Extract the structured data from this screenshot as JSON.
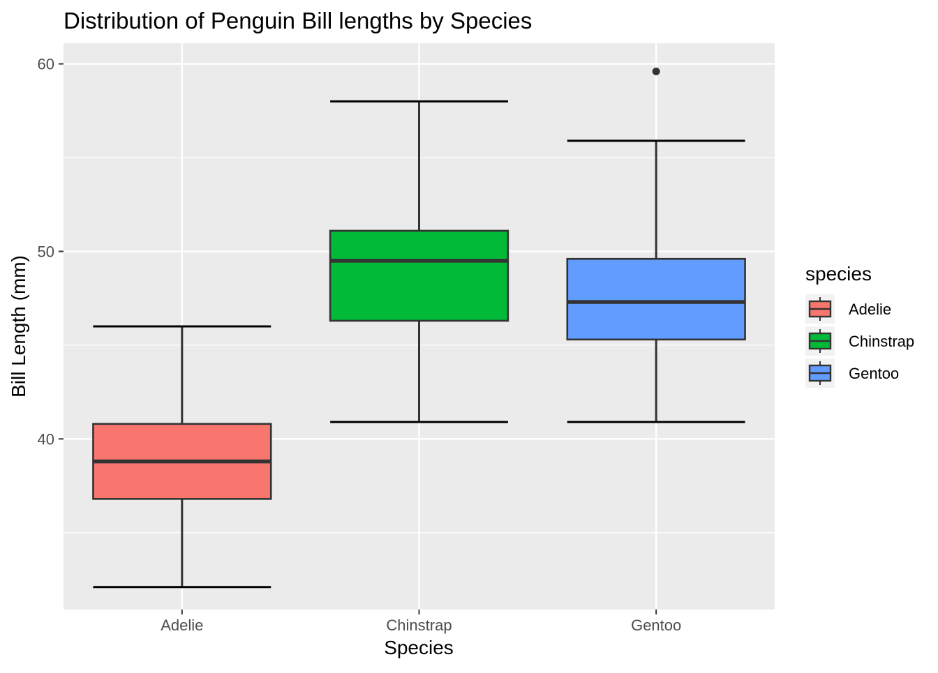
{
  "chart_data": {
    "type": "boxplot",
    "title": "Distribution of Penguin Bill lengths by Species",
    "xlabel": "Species",
    "ylabel": "Bill Length (mm)",
    "categories": [
      "Adelie",
      "Chinstrap",
      "Gentoo"
    ],
    "ylim": [
      30.9,
      61.1
    ],
    "yticks": [
      40,
      50,
      60
    ],
    "yminor": [
      35,
      45,
      55
    ],
    "grid": true,
    "legend": {
      "title": "species",
      "position": "right",
      "entries": [
        "Adelie",
        "Chinstrap",
        "Gentoo"
      ]
    },
    "colors": {
      "Adelie": "#F8766D",
      "Chinstrap": "#00BA38",
      "Gentoo": "#619CFF",
      "panel": "#EBEBEB",
      "grid": "#FFFFFF",
      "outline": "#333333"
    },
    "series": [
      {
        "name": "Adelie",
        "min": 32.1,
        "q1": 36.8,
        "median": 38.8,
        "q3": 40.8,
        "max": 46.0,
        "outliers": []
      },
      {
        "name": "Chinstrap",
        "min": 40.9,
        "q1": 46.3,
        "median": 49.5,
        "q3": 51.1,
        "max": 58.0,
        "outliers": []
      },
      {
        "name": "Gentoo",
        "min": 40.9,
        "q1": 45.3,
        "median": 47.3,
        "q3": 49.6,
        "max": 55.9,
        "outliers": [
          59.6
        ]
      }
    ]
  }
}
